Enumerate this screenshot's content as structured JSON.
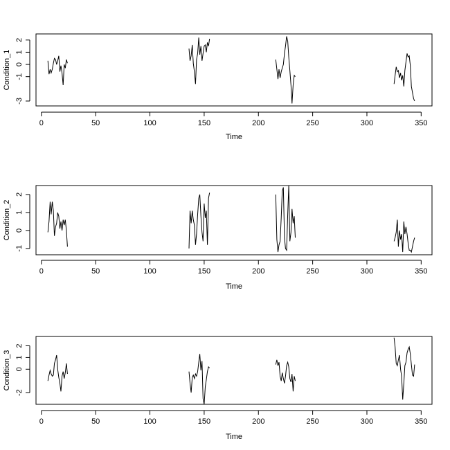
{
  "chart_data": [
    {
      "type": "line",
      "ylabel": "Condition_1",
      "xlabel": "Time",
      "xlim": [
        -5,
        360
      ],
      "ylim": [
        -3.4,
        2.5
      ],
      "x_ticks": [
        0,
        50,
        100,
        150,
        200,
        250,
        300,
        350
      ],
      "y_ticks": [
        -3,
        -1,
        0,
        1,
        2
      ],
      "y_tick_labels": [
        "-3",
        "-1",
        "0",
        "1",
        "2"
      ],
      "segments": [
        {
          "x": [
            6,
            7,
            8,
            9,
            10,
            11,
            12,
            13,
            14,
            15,
            16,
            17,
            18,
            19,
            20,
            21,
            22,
            23,
            24
          ],
          "y": [
            0.3,
            -0.8,
            -0.4,
            -0.7,
            -0.4,
            0.1,
            0.5,
            0.4,
            0.0,
            0.3,
            0.7,
            -0.6,
            -0.1,
            -0.7,
            -1.7,
            0.0,
            -0.3,
            0.4,
            0.1
          ]
        },
        {
          "x": [
            136,
            137,
            138,
            139,
            140,
            141,
            142,
            143,
            144,
            145,
            146,
            147,
            148,
            149,
            150,
            151,
            152,
            153,
            154,
            155
          ],
          "y": [
            1.3,
            0.3,
            0.7,
            1.6,
            0.1,
            -0.6,
            -1.6,
            0.4,
            0.9,
            2.2,
            0.8,
            1.5,
            0.3,
            0.9,
            1.5,
            1.6,
            1.0,
            1.8,
            1.5,
            2.1
          ]
        },
        {
          "x": [
            216,
            217,
            218,
            219,
            220,
            221,
            222,
            223,
            224,
            225,
            226,
            227,
            228,
            229,
            230,
            231,
            232,
            233,
            234
          ],
          "y": [
            0.4,
            -0.4,
            -1.2,
            -0.4,
            -1.1,
            -0.6,
            -0.3,
            0.0,
            0.9,
            1.5,
            2.3,
            1.9,
            0.6,
            -0.5,
            -1.7,
            -3.2,
            -1.7,
            -0.9,
            -1.0
          ]
        },
        {
          "x": [
            325,
            326,
            327,
            328,
            329,
            330,
            331,
            332,
            333,
            334,
            335,
            336,
            337,
            338,
            339,
            340,
            341,
            342,
            343,
            344
          ],
          "y": [
            -1.6,
            -0.9,
            -0.2,
            -0.6,
            -0.5,
            -1.1,
            -0.7,
            -1.3,
            -0.9,
            -1.8,
            -0.5,
            0.2,
            0.9,
            0.6,
            0.7,
            -0.1,
            -1.8,
            -2.3,
            -2.8,
            -3.0
          ]
        }
      ]
    },
    {
      "type": "line",
      "ylabel": "Condition_2",
      "xlabel": "Time",
      "xlim": [
        -5,
        360
      ],
      "ylim": [
        -1.35,
        2.5
      ],
      "x_ticks": [
        0,
        50,
        100,
        150,
        200,
        250,
        300,
        350
      ],
      "y_ticks": [
        -1,
        0,
        1,
        2
      ],
      "y_tick_labels": [
        "-1",
        "0",
        "1",
        "2"
      ],
      "segments": [
        {
          "x": [
            6,
            7,
            8,
            9,
            10,
            11,
            12,
            13,
            14,
            15,
            16,
            17,
            18,
            19,
            20,
            21,
            22,
            23,
            24
          ],
          "y": [
            -0.1,
            0.5,
            1.6,
            0.9,
            1.6,
            1.1,
            -0.3,
            0.2,
            0.4,
            1.0,
            0.8,
            0.1,
            0.5,
            0.0,
            0.6,
            0.3,
            0.6,
            0.0,
            -0.9
          ]
        },
        {
          "x": [
            136,
            137,
            138,
            139,
            140,
            141,
            142,
            143,
            144,
            145,
            146,
            147,
            148,
            149,
            150,
            151,
            152,
            153,
            154,
            155
          ],
          "y": [
            -1.0,
            1.1,
            0.4,
            1.1,
            0.6,
            0.3,
            -0.8,
            -0.2,
            0.9,
            1.8,
            2.0,
            0.8,
            -0.1,
            -0.6,
            1.5,
            0.7,
            1.1,
            -0.8,
            1.8,
            2.1
          ]
        },
        {
          "x": [
            216,
            217,
            218,
            219,
            220,
            221,
            222,
            223,
            224,
            225,
            226,
            227,
            228,
            229,
            230,
            231,
            232,
            233,
            234
          ],
          "y": [
            2.0,
            -0.5,
            -1.2,
            -0.8,
            -0.6,
            0.7,
            2.2,
            2.4,
            -0.4,
            -1.0,
            -1.1,
            0.9,
            2.5,
            -0.6,
            -0.1,
            1.2,
            0.4,
            0.8,
            -0.4
          ]
        },
        {
          "x": [
            325,
            326,
            327,
            328,
            329,
            330,
            331,
            332,
            333,
            334,
            335,
            336,
            337,
            338,
            339,
            340,
            341,
            342,
            343,
            344
          ],
          "y": [
            -0.6,
            -0.4,
            -0.1,
            0.6,
            -0.9,
            0.0,
            -0.5,
            -0.2,
            -1.2,
            0.5,
            -0.2,
            0.2,
            -0.2,
            -0.7,
            -1.1,
            -1.1,
            -1.2,
            -0.9,
            -0.6,
            -0.4
          ]
        }
      ]
    },
    {
      "type": "line",
      "ylabel": "Condition_3",
      "xlabel": "Time",
      "xlim": [
        -5,
        360
      ],
      "ylim": [
        -3.0,
        2.8
      ],
      "x_ticks": [
        0,
        50,
        100,
        150,
        200,
        250,
        300,
        350
      ],
      "y_ticks": [
        -2,
        0,
        1,
        2
      ],
      "y_tick_labels": [
        "-2",
        "0",
        "1",
        "2"
      ],
      "segments": [
        {
          "x": [
            6,
            7,
            8,
            9,
            10,
            11,
            12,
            13,
            14,
            15,
            16,
            17,
            18,
            19,
            20,
            21,
            22,
            23,
            24
          ],
          "y": [
            -1.0,
            -0.5,
            -0.1,
            -0.4,
            -0.6,
            -0.5,
            0.5,
            0.8,
            1.2,
            0.0,
            -0.7,
            -1.2,
            -1.9,
            -0.6,
            -0.2,
            -0.8,
            -0.3,
            0.5,
            -0.4
          ]
        },
        {
          "x": [
            136,
            137,
            138,
            139,
            140,
            141,
            142,
            143,
            144,
            145,
            146,
            147,
            148,
            149,
            150,
            151,
            152,
            153,
            154,
            155
          ],
          "y": [
            -0.2,
            -1.2,
            -2.0,
            -0.7,
            -0.5,
            -0.8,
            -0.4,
            -0.6,
            -0.2,
            0.6,
            1.3,
            -0.1,
            0.7,
            -2.5,
            -3.0,
            -1.5,
            -0.9,
            -0.2,
            0.2,
            0.1
          ]
        },
        {
          "x": [
            216,
            217,
            218,
            219,
            220,
            221,
            222,
            223,
            224,
            225,
            226,
            227,
            228,
            229,
            230,
            231,
            232,
            233,
            234
          ],
          "y": [
            0.4,
            0.8,
            0.3,
            0.6,
            -0.6,
            -1.0,
            -0.3,
            -0.8,
            -1.2,
            -0.6,
            0.3,
            0.6,
            0.2,
            -0.8,
            -1.1,
            -0.4,
            -1.9,
            -0.6,
            -1.0
          ]
        },
        {
          "x": [
            325,
            326,
            327,
            328,
            329,
            330,
            331,
            332,
            333,
            334,
            335,
            336,
            337,
            338,
            339,
            340,
            341,
            342,
            343,
            344
          ],
          "y": [
            2.7,
            1.9,
            0.5,
            0.3,
            0.8,
            1.2,
            0.0,
            -0.6,
            -2.6,
            -1.2,
            0.3,
            0.6,
            1.4,
            1.7,
            1.9,
            1.3,
            0.4,
            -0.5,
            -0.6,
            0.4
          ]
        }
      ]
    }
  ]
}
